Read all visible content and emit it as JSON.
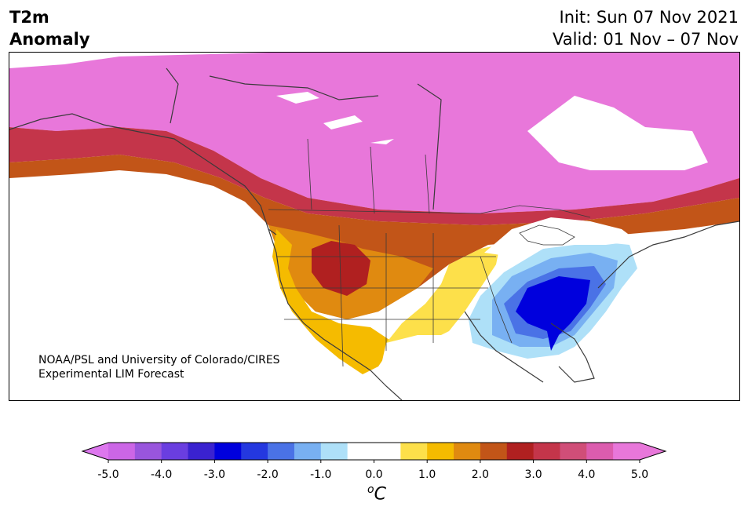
{
  "title": {
    "left_line1": "T2m",
    "left_line2": "Anomaly",
    "init": "Init: Sun 07 Nov 2021",
    "valid": "Valid: 01 Nov – 07 Nov"
  },
  "credit": {
    "line1": "NOAA/PSL and University of Colorado/CIRES",
    "line2": "Experimental LIM Forecast"
  },
  "colorbar": {
    "unit_sup": "o",
    "unit": "C",
    "tick_labels": [
      "-5.0",
      "-4.0",
      "-3.0",
      "-2.0",
      "-1.0",
      "0.0",
      "1.0",
      "2.0",
      "3.0",
      "4.0",
      "5.0"
    ],
    "levels_min": -5.0,
    "levels_max": 5.0,
    "level_step": 0.5,
    "colors": [
      "#cc66e6",
      "#9955dd",
      "#6a3ee0",
      "#3a22d0",
      "#0000dd",
      "#2438e0",
      "#4a72e6",
      "#78b0f2",
      "#aee0f8",
      "#ffffff",
      "#ffffff",
      "#fde04a",
      "#f5bb00",
      "#e08a10",
      "#c25518",
      "#b02020",
      "#c4354a",
      "#d04e78",
      "#dc5cae",
      "#e877da"
    ],
    "extend_low_color": "#dd77ee",
    "extend_high_color": "#e877da"
  },
  "map": {
    "colors": {
      "ocean": "#ffffff",
      "outline": "#3a3a3a",
      "strong_warm": "#e877da",
      "blue_dark": "#0000dd"
    }
  }
}
